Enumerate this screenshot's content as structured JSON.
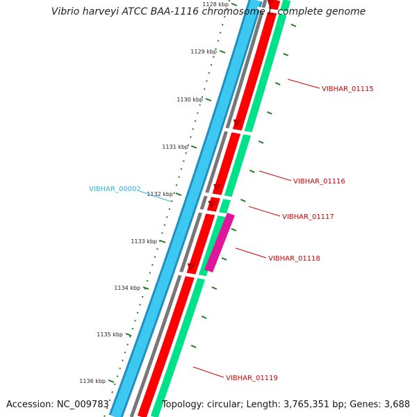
{
  "title": "Vibrio harveyi ATCC BAA-1116 chromosome I, complete genome",
  "footer": {
    "accession": "Accession: NC_009783",
    "stats": "Topology: circular; Length: 3,765,351 bp; Genes: 3,688"
  },
  "colors": {
    "forward_track": "#ff0000",
    "reverse_track": "#3cc8f0",
    "cds_track": "#00e28a",
    "highlight_gene": "#e0159a",
    "backbone": "#777777",
    "ruler": "#1a7a1a",
    "reverse_label": "#2ab4e0",
    "forward_label": "#cc0000"
  },
  "ruler_ticks": [
    {
      "label": "1128 kbp",
      "label_text": "1128 kbp"
    },
    {
      "label": "1129 kbp"
    },
    {
      "label": "1130 kbp"
    },
    {
      "label": "1131 kbp"
    },
    {
      "label": "1132 kbp"
    },
    {
      "label": "1133 kbp"
    },
    {
      "label": "1134 kbp"
    },
    {
      "label": "1135 kbp"
    },
    {
      "label": "1136 kbp"
    }
  ],
  "gene_labels": [
    {
      "name": "VIBHAR_01115",
      "strand": "forward"
    },
    {
      "name": "VIBHAR_01116",
      "strand": "forward"
    },
    {
      "name": "VIBHAR_01117",
      "strand": "forward"
    },
    {
      "name": "VIBHAR_01118",
      "strand": "forward"
    },
    {
      "name": "VIBHAR_01119",
      "strand": "forward"
    },
    {
      "name": "VIBHAR_00002",
      "strand": "reverse"
    }
  ]
}
